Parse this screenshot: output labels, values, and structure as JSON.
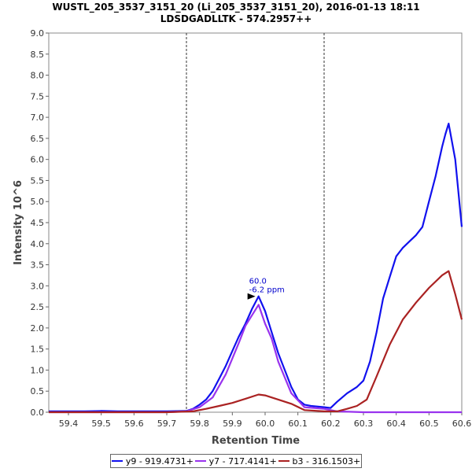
{
  "chart_data": {
    "type": "line",
    "title": "WUSTL_205_3537_3151_20 (Li_205_3537_3151_20), 2016-01-13 18:11",
    "subtitle": "LDSDGADLLTK - 574.2957++",
    "xlabel": "Retention Time",
    "ylabel": "Intensity 10^6",
    "xlim": [
      59.34,
      60.6
    ],
    "ylim": [
      0,
      9.0
    ],
    "x_ticks": [
      59.4,
      59.5,
      59.6,
      59.7,
      59.8,
      59.9,
      60.0,
      60.1,
      60.2,
      60.3,
      60.4,
      60.5,
      60.6
    ],
    "y_ticks": [
      0.0,
      0.5,
      1.0,
      1.5,
      2.0,
      2.5,
      3.0,
      3.5,
      4.0,
      4.5,
      5.0,
      5.5,
      6.0,
      6.5,
      7.0,
      7.5,
      8.0,
      8.5,
      9.0
    ],
    "grid": false,
    "legend_position": "bottom",
    "boundary_lines_x": [
      59.76,
      60.18
    ],
    "annotation": {
      "x": 59.98,
      "y": 2.75,
      "line1": "60.0",
      "line2": "-6.2 ppm",
      "color": "#0000cc"
    },
    "series": [
      {
        "name": "y9 - 919.4731+",
        "color": "#1111ee",
        "x": [
          59.34,
          59.45,
          59.5,
          59.55,
          59.7,
          59.76,
          59.78,
          59.8,
          59.82,
          59.84,
          59.86,
          59.88,
          59.9,
          59.92,
          59.94,
          59.96,
          59.98,
          60.0,
          60.02,
          60.04,
          60.06,
          60.08,
          60.1,
          60.12,
          60.14,
          60.18,
          60.2,
          60.22,
          60.25,
          60.28,
          60.3,
          60.32,
          60.34,
          60.36,
          60.38,
          60.4,
          60.42,
          60.44,
          60.46,
          60.48,
          60.5,
          60.52,
          60.54,
          60.55,
          60.56,
          60.58,
          60.6
        ],
        "y": [
          0.02,
          0.02,
          0.03,
          0.02,
          0.02,
          0.03,
          0.08,
          0.18,
          0.3,
          0.5,
          0.8,
          1.1,
          1.45,
          1.8,
          2.1,
          2.45,
          2.75,
          2.4,
          1.9,
          1.4,
          1.0,
          0.6,
          0.3,
          0.18,
          0.15,
          0.12,
          0.1,
          0.25,
          0.45,
          0.6,
          0.75,
          1.2,
          1.9,
          2.7,
          3.2,
          3.7,
          3.9,
          4.05,
          4.2,
          4.4,
          5.0,
          5.6,
          6.3,
          6.6,
          6.85,
          6.0,
          4.4
        ]
      },
      {
        "name": "y7 - 717.4141+",
        "color": "#9933ee",
        "x": [
          59.34,
          59.7,
          59.76,
          59.8,
          59.84,
          59.88,
          59.92,
          59.94,
          59.96,
          59.98,
          60.0,
          60.02,
          60.04,
          60.08,
          60.12,
          60.18,
          60.22,
          60.3,
          60.6
        ],
        "y": [
          0.0,
          0.0,
          0.02,
          0.12,
          0.35,
          0.9,
          1.65,
          2.05,
          2.3,
          2.55,
          2.1,
          1.75,
          1.2,
          0.45,
          0.12,
          0.08,
          0.02,
          0.0,
          0.0
        ]
      },
      {
        "name": "b3 - 316.1503+",
        "color": "#aa2222",
        "x": [
          59.34,
          59.7,
          59.78,
          59.82,
          59.86,
          59.9,
          59.94,
          59.98,
          60.0,
          60.04,
          60.08,
          60.12,
          60.18,
          60.22,
          60.25,
          60.28,
          60.31,
          60.34,
          60.38,
          60.42,
          60.46,
          60.5,
          60.54,
          60.56,
          60.58,
          60.6
        ],
        "y": [
          0.0,
          0.0,
          0.02,
          0.08,
          0.15,
          0.22,
          0.32,
          0.42,
          0.4,
          0.3,
          0.2,
          0.05,
          0.02,
          0.02,
          0.08,
          0.15,
          0.3,
          0.85,
          1.6,
          2.2,
          2.6,
          2.95,
          3.25,
          3.35,
          2.8,
          2.2
        ]
      }
    ]
  }
}
